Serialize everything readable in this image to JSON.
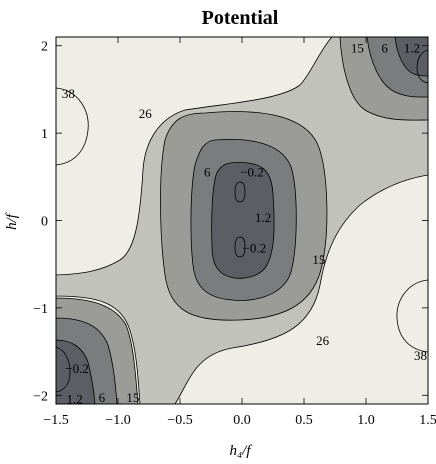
{
  "chart_data": {
    "type": "contour",
    "title": "Potential",
    "xlabel": "h₄/f",
    "ylabel": "h/f",
    "xlim": [
      -1.5,
      1.5
    ],
    "ylim": [
      -2.1,
      2.1
    ],
    "x_ticks": [
      -1.5,
      -1.0,
      -0.5,
      0.0,
      0.5,
      1.0,
      1.5
    ],
    "x_tick_labels": [
      "−1.5",
      "−1.0",
      "−0.5",
      "0.0",
      "0.5",
      "1.0",
      "1.5"
    ],
    "y_ticks": [
      -2,
      -1,
      0,
      1,
      2
    ],
    "y_tick_labels": [
      "−2",
      "−1",
      "0",
      "1",
      "2"
    ],
    "levels": [
      -0.2,
      1.2,
      6,
      15,
      26,
      38
    ],
    "contour_labels": [
      {
        "text": "38",
        "x": -1.4,
        "y": 1.45
      },
      {
        "text": "26",
        "x": -0.78,
        "y": 1.22
      },
      {
        "text": "15",
        "x": 0.93,
        "y": 1.97
      },
      {
        "text": "6",
        "x": 1.15,
        "y": 1.97
      },
      {
        "text": "1.2",
        "x": 1.37,
        "y": 1.97
      },
      {
        "text": "6",
        "x": -0.28,
        "y": 0.55
      },
      {
        "text": "−0.2",
        "x": 0.08,
        "y": 0.55
      },
      {
        "text": "1.2",
        "x": 0.17,
        "y": 0.03
      },
      {
        "text": "−0.2",
        "x": 0.1,
        "y": -0.32
      },
      {
        "text": "15",
        "x": 0.62,
        "y": -0.45
      },
      {
        "text": "26",
        "x": 0.65,
        "y": -1.38
      },
      {
        "text": "38",
        "x": 1.48,
        "y": -1.55
      },
      {
        "text": "−0.2",
        "x": -1.33,
        "y": -1.7
      },
      {
        "text": "1.2",
        "x": -1.35,
        "y": -2.05
      },
      {
        "text": "6",
        "x": -1.13,
        "y": -2.03
      },
      {
        "text": "15",
        "x": -0.88,
        "y": -2.03
      }
    ],
    "colors": {
      "band_38": "#eeeee6",
      "band_26": "#c2c2bd",
      "band_15": "#9b9b98",
      "band_6": "#7a7c7d",
      "band_1_2": "#5b5f65",
      "band_min": "#4a4f57"
    }
  }
}
